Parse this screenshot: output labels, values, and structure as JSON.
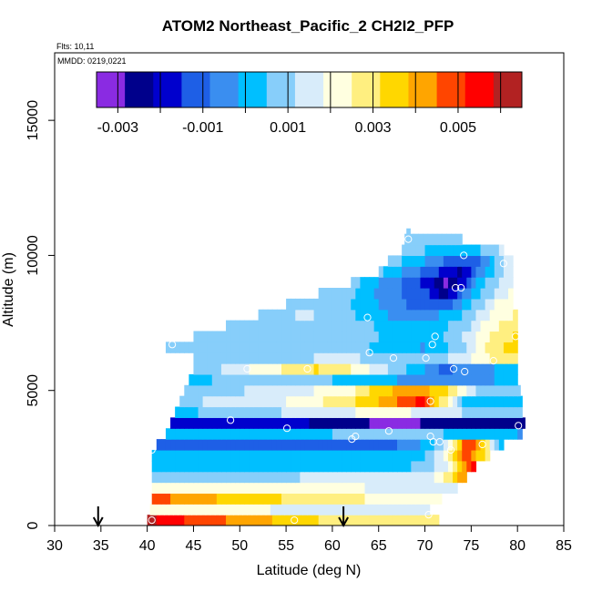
{
  "chart_data": {
    "type": "heatmap",
    "title": "ATOM2 Northeast_Pacific_2 CH2I2_PFP",
    "flights_label": "Flts: 10,11",
    "mmdd_label": "MMDD: 0219,0221",
    "xlabel": "Latitude (deg N)",
    "ylabel": "Altitude (m)",
    "xlim": [
      30,
      85
    ],
    "ylim": [
      0,
      17500
    ],
    "x_ticks": [
      30,
      35,
      40,
      45,
      50,
      55,
      60,
      65,
      70,
      75,
      80,
      85
    ],
    "y_ticks": [
      0,
      5000,
      10000,
      15000
    ],
    "colorbar": {
      "range": [
        -0.0035,
        0.0065
      ],
      "labels": [
        "-0.003",
        "-0.001",
        "0.001",
        "0.003",
        "0.005"
      ],
      "label_values": [
        -0.003,
        -0.001,
        0.001,
        0.003,
        0.005
      ],
      "colors": [
        "#8a2be2",
        "#00008b",
        "#0000cd",
        "#1e5fe6",
        "#3a8ef0",
        "#00bfff",
        "#87cefa",
        "#d8ecfa",
        "#ffffe0",
        "#ffef80",
        "#ffd700",
        "#ffa500",
        "#ff4500",
        "#ff0000",
        "#b22222"
      ]
    },
    "arrows_latitude": [
      34.7,
      61.2
    ],
    "sample_points": [
      {
        "lat": 68.2,
        "alt": 10600
      },
      {
        "lat": 74.2,
        "alt": 10000
      },
      {
        "lat": 78.5,
        "alt": 9700
      },
      {
        "lat": 73.3,
        "alt": 8800
      },
      {
        "lat": 73.9,
        "alt": 8800
      },
      {
        "lat": 63.8,
        "alt": 7700
      },
      {
        "lat": 79.8,
        "alt": 7000
      },
      {
        "lat": 71.1,
        "alt": 7000
      },
      {
        "lat": 70.8,
        "alt": 6700
      },
      {
        "lat": 42.7,
        "alt": 6700
      },
      {
        "lat": 64.0,
        "alt": 6400
      },
      {
        "lat": 66.6,
        "alt": 6200
      },
      {
        "lat": 70.1,
        "alt": 6200
      },
      {
        "lat": 77.4,
        "alt": 6100
      },
      {
        "lat": 50.8,
        "alt": 5800
      },
      {
        "lat": 57.3,
        "alt": 5800
      },
      {
        "lat": 73.1,
        "alt": 5800
      },
      {
        "lat": 74.3,
        "alt": 5700
      },
      {
        "lat": 70.6,
        "alt": 4600
      },
      {
        "lat": 49.0,
        "alt": 3900
      },
      {
        "lat": 80.1,
        "alt": 3700
      },
      {
        "lat": 55.1,
        "alt": 3600
      },
      {
        "lat": 66.1,
        "alt": 3500
      },
      {
        "lat": 62.1,
        "alt": 3200
      },
      {
        "lat": 62.5,
        "alt": 3300
      },
      {
        "lat": 70.9,
        "alt": 3100
      },
      {
        "lat": 70.6,
        "alt": 3300
      },
      {
        "lat": 71.6,
        "alt": 3100
      },
      {
        "lat": 76.2,
        "alt": 3000
      },
      {
        "lat": 72.8,
        "alt": 2800
      },
      {
        "lat": 40.5,
        "alt": 2800
      },
      {
        "lat": 71.6,
        "alt": 600
      },
      {
        "lat": 70.4,
        "alt": 400
      },
      {
        "lat": 40.5,
        "alt": 200
      },
      {
        "lat": 55.9,
        "alt": 200
      }
    ],
    "layers": [
      {
        "alt": [
          0,
          400
        ],
        "lat": [
          40,
          71.5
        ],
        "stops": [
          [
            40,
            0.006
          ],
          [
            45,
            0.005
          ],
          [
            52,
            0.004
          ],
          [
            58,
            0.0032
          ],
          [
            64,
            0.0027
          ],
          [
            71.5,
            0.0026
          ]
        ]
      },
      {
        "alt": [
          400,
          800
        ],
        "lat": [
          40.3,
          70.5
        ],
        "stops": [
          [
            40.3,
            0.0025
          ],
          [
            50,
            0.002
          ],
          [
            58,
            0.0016
          ],
          [
            64,
            0.0013
          ],
          [
            70.5,
            0.0015
          ]
        ]
      },
      {
        "alt": [
          800,
          1200
        ],
        "lat": [
          40.5,
          71.8
        ],
        "stops": [
          [
            40.5,
            0.005
          ],
          [
            44,
            0.0042
          ],
          [
            50,
            0.0036
          ],
          [
            56,
            0.003
          ],
          [
            62,
            0.0026
          ],
          [
            68,
            0.0022
          ],
          [
            71.8,
            0.0019
          ]
        ]
      },
      {
        "alt": [
          1200,
          1600
        ],
        "lat": [
          40.5,
          73.5
        ],
        "stops": [
          [
            40.5,
            0.0025
          ],
          [
            50,
            0.0021
          ],
          [
            60,
            0.0019
          ],
          [
            70,
            0.0017
          ],
          [
            73.5,
            0.0016
          ]
        ]
      },
      {
        "alt": [
          1600,
          2000
        ],
        "lat": [
          40.5,
          74.5
        ],
        "stops": [
          [
            40.5,
            0.001
          ],
          [
            50,
            0.0011
          ],
          [
            60,
            0.0012
          ],
          [
            70,
            0.0014
          ],
          [
            72,
            0.0025
          ],
          [
            74.5,
            0.0045
          ]
        ]
      },
      {
        "alt": [
          2000,
          2400
        ],
        "lat": [
          40.5,
          75.5
        ],
        "stops": [
          [
            40.5,
            0.0002
          ],
          [
            55,
            0.0002
          ],
          [
            68,
            0.0004
          ],
          [
            72,
            0.0015
          ],
          [
            74,
            0.0035
          ],
          [
            75.5,
            0.006
          ]
        ]
      },
      {
        "alt": [
          2400,
          2800
        ],
        "lat": [
          40.5,
          77.0
        ],
        "stops": [
          [
            40.5,
            0.0001
          ],
          [
            60,
            0.0002
          ],
          [
            70,
            0.0004
          ],
          [
            72.5,
            0.0022
          ],
          [
            74.5,
            0.005
          ],
          [
            76,
            0.0034
          ],
          [
            77,
            0.003
          ]
        ]
      },
      {
        "alt": [
          2800,
          3200
        ],
        "lat": [
          41.0,
          78.5
        ],
        "stops": [
          [
            41,
            -0.0014
          ],
          [
            55,
            -0.0012
          ],
          [
            68,
            -0.0008
          ],
          [
            72,
            0.001
          ],
          [
            74.5,
            0.005
          ],
          [
            76,
            0.004
          ],
          [
            78.5,
            -0.0005
          ]
        ]
      },
      {
        "alt": [
          3200,
          3600
        ],
        "lat": [
          42.0,
          80.5
        ],
        "stops": [
          [
            42,
            0.0
          ],
          [
            55,
            0.0002
          ],
          [
            65,
            0.0008
          ],
          [
            72,
            0.0005
          ],
          [
            76,
            0.0001
          ],
          [
            80.5,
            -0.0002
          ]
        ]
      },
      {
        "alt": [
          3600,
          4000
        ],
        "lat": [
          42.5,
          80.8
        ],
        "stops": [
          [
            42.5,
            -0.0018
          ],
          [
            55,
            -0.002
          ],
          [
            62,
            -0.0025
          ],
          [
            66,
            -0.0032
          ],
          [
            72,
            -0.0026
          ],
          [
            80.8,
            -0.0024
          ]
        ]
      },
      {
        "alt": [
          4000,
          4400
        ],
        "lat": [
          43.0,
          80.5
        ],
        "stops": [
          [
            43,
            0.0003
          ],
          [
            55,
            0.0012
          ],
          [
            62,
            0.0018
          ],
          [
            66,
            0.002
          ],
          [
            72,
            0.0016
          ],
          [
            76,
            0.0008
          ],
          [
            80.5,
            0.0005
          ]
        ]
      },
      {
        "alt": [
          4400,
          4800
        ],
        "lat": [
          43.5,
          80.5
        ],
        "stops": [
          [
            43.5,
            0.001
          ],
          [
            55,
            0.0018
          ],
          [
            62,
            0.003
          ],
          [
            67,
            0.0045
          ],
          [
            70,
            0.0055
          ],
          [
            72,
            0.0028
          ],
          [
            74,
            0.0005
          ],
          [
            80.5,
            0.0002
          ]
        ]
      },
      {
        "alt": [
          4800,
          5200
        ],
        "lat": [
          44.0,
          80.3
        ],
        "stops": [
          [
            44,
            0.0008
          ],
          [
            55,
            0.0014
          ],
          [
            62,
            0.0024
          ],
          [
            66,
            0.0038
          ],
          [
            70,
            0.004
          ],
          [
            73,
            0.003
          ],
          [
            76,
            0.0009
          ],
          [
            80.3,
            0.0006
          ]
        ]
      },
      {
        "alt": [
          5200,
          5600
        ],
        "lat": [
          44.5,
          80.0
        ],
        "stops": [
          [
            44.5,
            0.0004
          ],
          [
            52,
            0.0007
          ],
          [
            60,
            0.0005
          ],
          [
            65,
            0.0002
          ],
          [
            70,
            -0.0008
          ],
          [
            75,
            -0.0005
          ],
          [
            80,
            0.0002
          ]
        ]
      },
      {
        "alt": [
          5600,
          6000
        ],
        "lat": [
          45.0,
          80.0
        ],
        "stops": [
          [
            45,
            0.0006
          ],
          [
            50,
            0.0016
          ],
          [
            54,
            0.0024
          ],
          [
            58,
            0.0032
          ],
          [
            61,
            0.0028
          ],
          [
            64,
            0.0018
          ],
          [
            68,
            0.0005
          ],
          [
            72,
            -0.001
          ],
          [
            76,
            -0.0004
          ],
          [
            80,
            0.0003
          ]
        ]
      },
      {
        "alt": [
          6000,
          6400
        ],
        "lat": [
          45.0,
          80.0
        ],
        "stops": [
          [
            45,
            0.0007
          ],
          [
            55,
            0.001
          ],
          [
            62,
            0.0014
          ],
          [
            66,
            0.0006
          ],
          [
            70,
            0.0008
          ],
          [
            74,
            0.0014
          ],
          [
            77,
            0.0025
          ],
          [
            80,
            0.003
          ]
        ]
      },
      {
        "alt": [
          6400,
          6800
        ],
        "lat": [
          42.0,
          80.0
        ],
        "stops": [
          [
            42,
            0.0008
          ],
          [
            55,
            0.001
          ],
          [
            62,
            0.0008
          ],
          [
            66,
            0.0002
          ],
          [
            70,
            -0.0002
          ],
          [
            74,
            0.001
          ],
          [
            77,
            0.0028
          ],
          [
            80,
            0.0035
          ]
        ]
      },
      {
        "alt": [
          6800,
          7200
        ],
        "lat": [
          45.0,
          80.0
        ],
        "stops": [
          [
            45,
            0.0009
          ],
          [
            55,
            0.001
          ],
          [
            62,
            0.0009
          ],
          [
            66,
            0.0004
          ],
          [
            70,
            0.0
          ],
          [
            74,
            0.0011
          ],
          [
            77,
            0.0026
          ],
          [
            80,
            0.0033
          ]
        ]
      },
      {
        "alt": [
          7200,
          7600
        ],
        "lat": [
          48.5,
          80.0
        ],
        "stops": [
          [
            48.5,
            0.001
          ],
          [
            55,
            0.0011
          ],
          [
            62,
            0.0008
          ],
          [
            66,
            0.0003
          ],
          [
            70,
            0.0
          ],
          [
            74,
            0.0008
          ],
          [
            77,
            0.0022
          ],
          [
            80,
            0.003
          ]
        ]
      },
      {
        "alt": [
          7600,
          8000
        ],
        "lat": [
          52.0,
          80.0
        ],
        "stops": [
          [
            52,
            0.0011
          ],
          [
            58,
            0.0012
          ],
          [
            62,
            0.0006
          ],
          [
            66,
            -0.0002
          ],
          [
            70,
            -0.0006
          ],
          [
            74,
            0.0004
          ],
          [
            77,
            0.0018
          ],
          [
            80,
            0.0026
          ]
        ]
      },
      {
        "alt": [
          8000,
          8400
        ],
        "lat": [
          55.0,
          79.5
        ],
        "stops": [
          [
            55,
            0.0011
          ],
          [
            60,
            0.0009
          ],
          [
            64,
            0.0
          ],
          [
            68,
            -0.0008
          ],
          [
            72,
            -0.0014
          ],
          [
            74,
            -0.0002
          ],
          [
            77,
            0.0016
          ],
          [
            79.5,
            0.0024
          ]
        ]
      },
      {
        "alt": [
          8400,
          8800
        ],
        "lat": [
          58.5,
          79.5
        ],
        "stops": [
          [
            58.5,
            0.0011
          ],
          [
            62,
            0.0006
          ],
          [
            66,
            -0.0006
          ],
          [
            70,
            -0.0012
          ],
          [
            72,
            -0.0024
          ],
          [
            74,
            -0.001
          ],
          [
            77,
            0.001
          ],
          [
            79.5,
            0.002
          ]
        ]
      },
      {
        "alt": [
          8800,
          9200
        ],
        "lat": [
          62.0,
          79.5
        ],
        "stops": [
          [
            62,
            0.0008
          ],
          [
            66,
            -0.0004
          ],
          [
            70,
            -0.0016
          ],
          [
            72,
            -0.003
          ],
          [
            74,
            -0.002
          ],
          [
            76,
            0.0002
          ],
          [
            79.5,
            0.0018
          ]
        ]
      },
      {
        "alt": [
          9200,
          9600
        ],
        "lat": [
          65.0,
          79.5
        ],
        "stops": [
          [
            65,
            0.0007
          ],
          [
            68,
            -0.0004
          ],
          [
            71,
            -0.0014
          ],
          [
            74,
            -0.0024
          ],
          [
            76,
            -0.0004
          ],
          [
            79.5,
            0.0018
          ]
        ]
      },
      {
        "alt": [
          9600,
          10000
        ],
        "lat": [
          66.0,
          79.5
        ],
        "stops": [
          [
            66,
            0.0008
          ],
          [
            69,
            0.0002
          ],
          [
            72,
            -0.0008
          ],
          [
            75,
            -0.0014
          ],
          [
            77,
            0.0
          ],
          [
            79.5,
            0.0018
          ]
        ]
      },
      {
        "alt": [
          10000,
          10400
        ],
        "lat": [
          67.5,
          78.5
        ],
        "stops": [
          [
            67.5,
            0.0008
          ],
          [
            71,
            0.0004
          ],
          [
            74,
            0.0
          ],
          [
            76,
            0.0004
          ],
          [
            78.5,
            0.0014
          ]
        ]
      },
      {
        "alt": [
          10400,
          10800
        ],
        "lat": [
          67.8,
          74.0
        ],
        "stops": [
          [
            67.8,
            0.0008
          ],
          [
            70,
            0.0006
          ],
          [
            74,
            0.0005
          ]
        ]
      },
      {
        "alt": [
          10800,
          11000
        ],
        "lat": [
          68.0,
          68.4
        ],
        "stops": [
          [
            68,
            0.0006
          ],
          [
            68.4,
            0.0006
          ]
        ]
      }
    ]
  }
}
